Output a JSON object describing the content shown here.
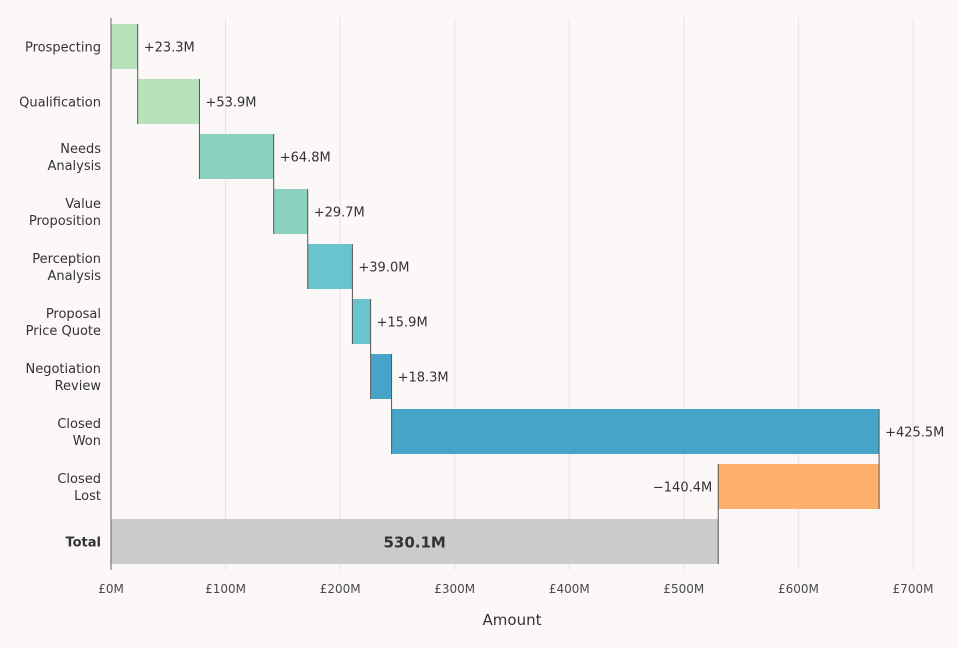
{
  "chart_data": {
    "type": "bar",
    "subtype": "waterfall",
    "orientation": "horizontal",
    "categories": [
      [
        "Prospecting"
      ],
      [
        "Qualification"
      ],
      [
        "Needs",
        "Analysis"
      ],
      [
        "Value",
        "Proposition"
      ],
      [
        "Perception",
        "Analysis"
      ],
      [
        "Proposal",
        "Price Quote"
      ],
      [
        "Negotiation",
        "Review"
      ],
      [
        "Closed",
        "Won"
      ],
      [
        "Closed",
        "Lost"
      ]
    ],
    "values": [
      23.3,
      53.9,
      64.8,
      29.7,
      39.0,
      15.9,
      18.3,
      425.5,
      -140.4
    ],
    "value_labels": [
      "+23.3M",
      "+53.9M",
      "+64.8M",
      "+29.7M",
      "+39.0M",
      "+15.9M",
      "+18.3M",
      "+425.5M",
      "−140.4M"
    ],
    "colors": [
      "#b6e2bc",
      "#b6e2bc",
      "#8cd0c0",
      "#8cd0c0",
      "#6ac4cd",
      "#6ac4cd",
      "#46a4c9",
      "#46a4c9",
      "#fdb06c"
    ],
    "total": {
      "label": "Total",
      "value": 530.1,
      "value_label": "530.1M",
      "color": "#cccccc"
    },
    "x_ticks": [
      0,
      100,
      200,
      300,
      400,
      500,
      600,
      700
    ],
    "x_tick_labels": [
      "£0M",
      "£100M",
      "£200M",
      "£300M",
      "£400M",
      "£500M",
      "£600M",
      "£700M"
    ],
    "xlim": [
      0,
      700
    ],
    "xlabel": "Amount",
    "ylabel": "",
    "title": "",
    "grid": true,
    "connector_color": "#555555",
    "background": "#fcf8f7"
  }
}
